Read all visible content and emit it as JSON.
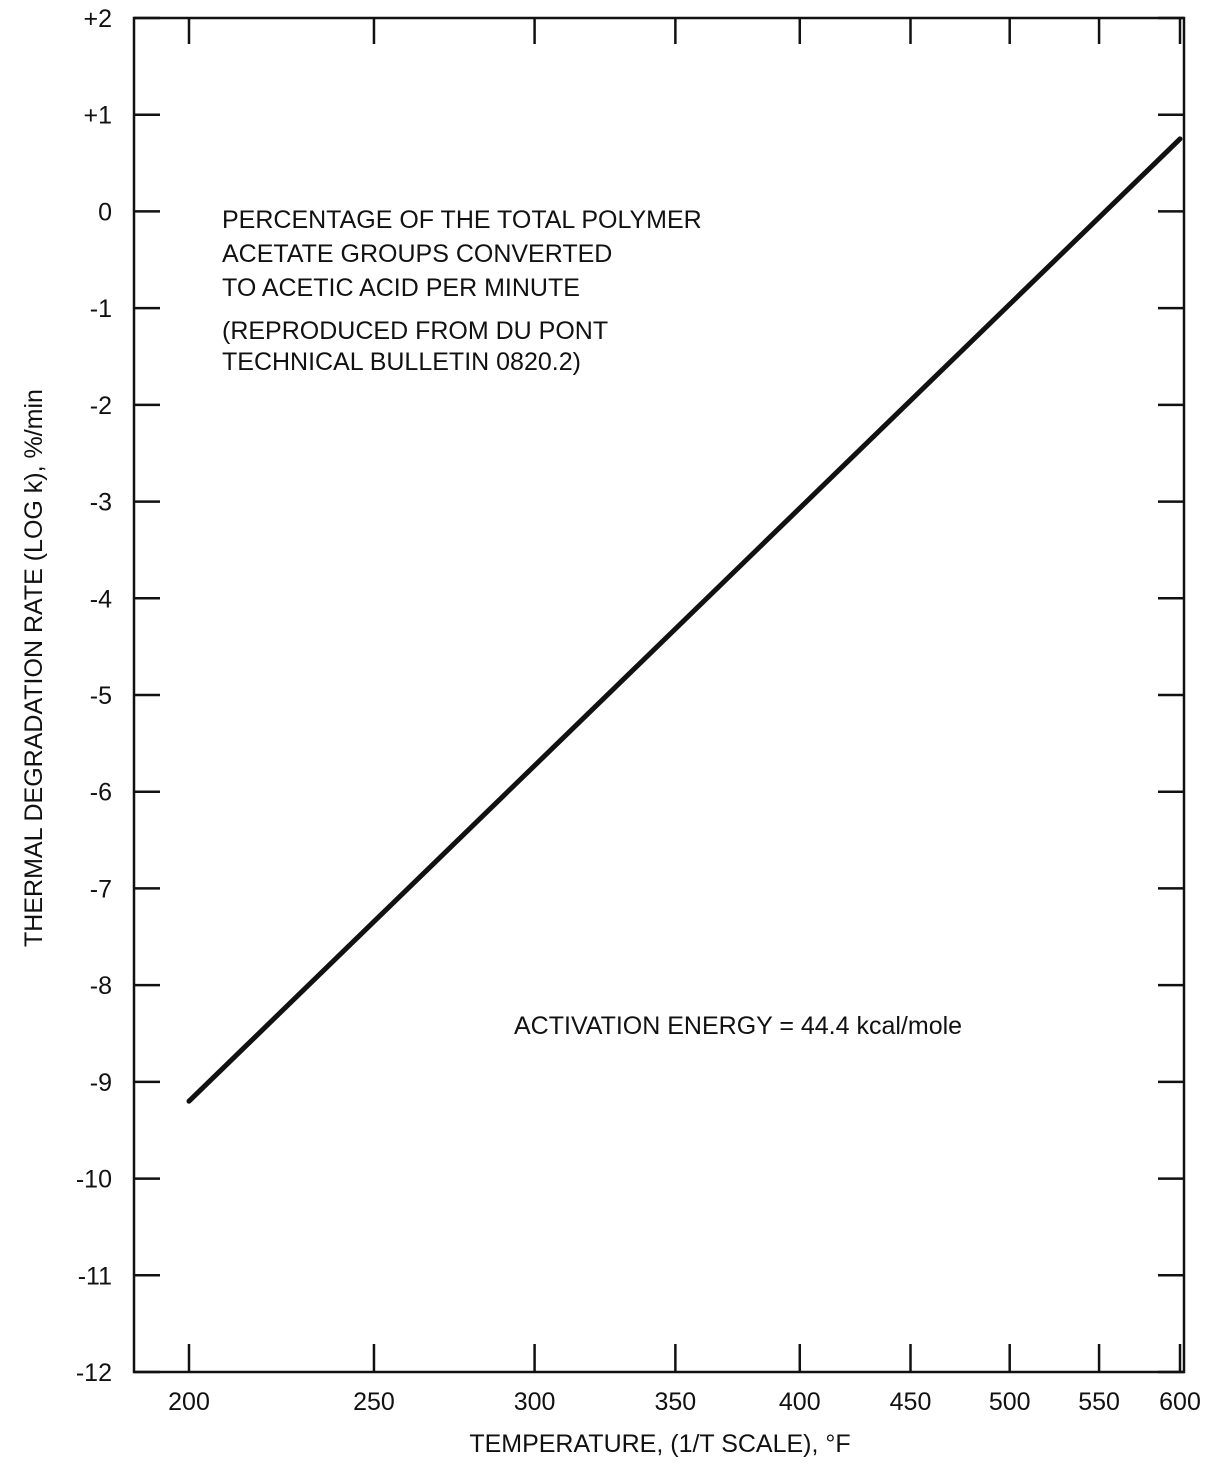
{
  "colors": {
    "background": "#ffffff",
    "ink": "#111111"
  },
  "chart_data": {
    "type": "line",
    "title": "",
    "xlabel": "TEMPERATURE, (1/T SCALE), °F",
    "ylabel": "THERMAL DEGRADATION RATE (LOG k), %/min",
    "x_scale": "reciprocal",
    "x_ticks": [
      200,
      250,
      300,
      350,
      400,
      450,
      500,
      550,
      600
    ],
    "x_tick_labels": [
      "200",
      "250",
      "300",
      "350",
      "400",
      "450",
      "500",
      "550",
      "600"
    ],
    "xlim": [
      200,
      600
    ],
    "y_ticks": [
      2,
      1,
      0,
      -1,
      -2,
      -3,
      -4,
      -5,
      -6,
      -7,
      -8,
      -9,
      -10,
      -11,
      -12
    ],
    "y_tick_labels": [
      "+2",
      "+1",
      "0",
      "-1",
      "-2",
      "-3",
      "-4",
      "-5",
      "-6",
      "-7",
      "-8",
      "-9",
      "-10",
      "-11",
      "-12"
    ],
    "ylim": [
      -12,
      2
    ],
    "grid": false,
    "series": [
      {
        "x": [
          200,
          600
        ],
        "y": [
          -9.2,
          0.75
        ]
      }
    ],
    "annotations": [
      {
        "lines": [
          "PERCENTAGE OF THE TOTAL POLYMER",
          "ACETATE GROUPS CONVERTED",
          "TO ACETIC ACID PER MINUTE"
        ]
      },
      {
        "lines": [
          "(REPRODUCED FROM DU PONT",
          "TECHNICAL BULLETIN 0820.2)"
        ]
      },
      {
        "lines": [
          "ACTIVATION ENERGY  =  44.4 kcal/mole"
        ]
      }
    ]
  }
}
